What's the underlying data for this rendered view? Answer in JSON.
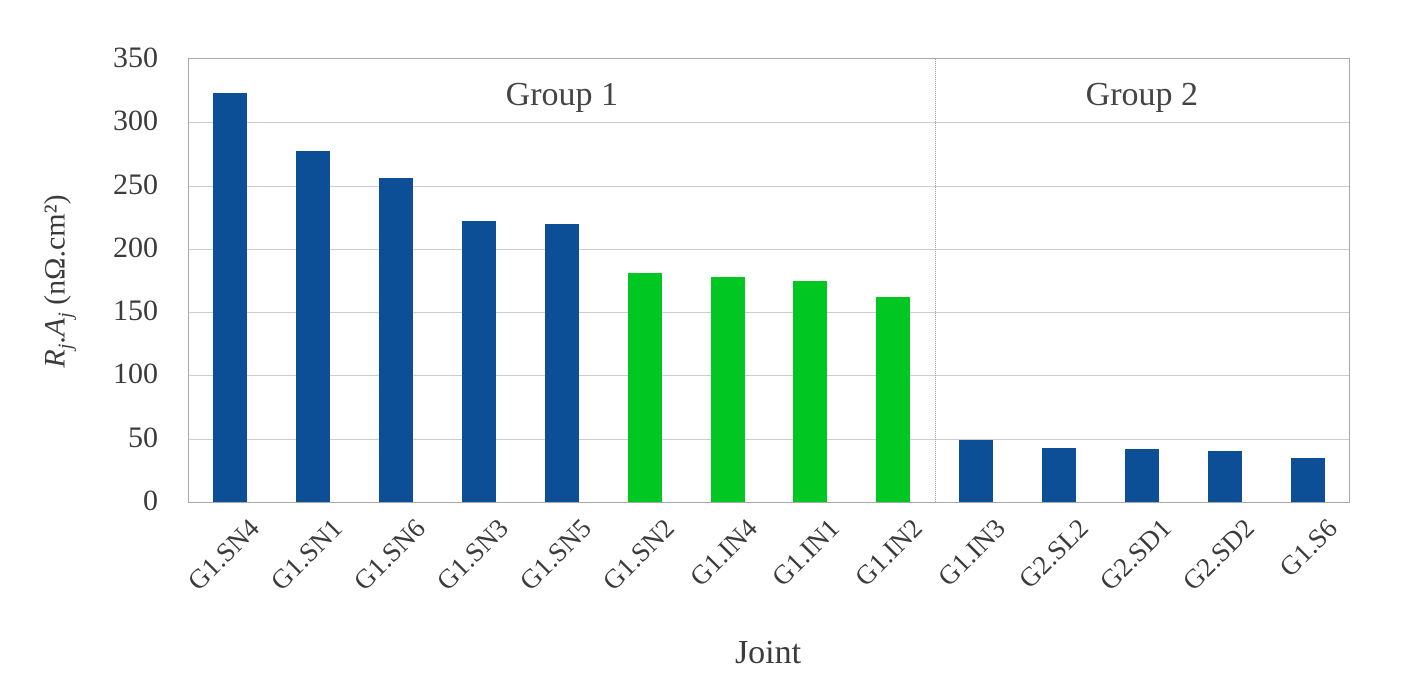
{
  "chart_data": {
    "type": "bar",
    "title": "",
    "xlabel": "Joint",
    "ylabel": "Rj.Aj (nΩ.cm²)",
    "ylabel_parts": {
      "r": "R",
      "j1": "j",
      "dot": ".",
      "a": "A",
      "j2": "j",
      "unit": " (nΩ.cm²)"
    },
    "categories": [
      "G1.SN4",
      "G1.SN1",
      "G1.SN6",
      "G1.SN3",
      "G1.SN5",
      "G1.SN2",
      "G1.IN4",
      "G1.IN1",
      "G1.IN2",
      "G1.IN3",
      "G2.SL2",
      "G2.SD1",
      "G2.SD2",
      "G1.S6"
    ],
    "values": [
      323,
      277,
      256,
      222,
      220,
      181,
      178,
      175,
      162,
      49,
      43,
      42,
      40,
      35
    ],
    "bar_colors": [
      "blue",
      "blue",
      "blue",
      "blue",
      "blue",
      "green",
      "green",
      "green",
      "green",
      "blue",
      "blue",
      "blue",
      "blue",
      "blue"
    ],
    "colors": {
      "blue": "#0C4F96",
      "green": "#00C722"
    },
    "ylim": [
      0,
      350
    ],
    "yticks": [
      0,
      50,
      100,
      150,
      200,
      250,
      300,
      350
    ],
    "grid": true,
    "legend_position": "none",
    "groups": [
      {
        "label": "Group 1",
        "start": 0,
        "end": 9
      },
      {
        "label": "Group 2",
        "start": 9,
        "end": 14
      }
    ]
  }
}
